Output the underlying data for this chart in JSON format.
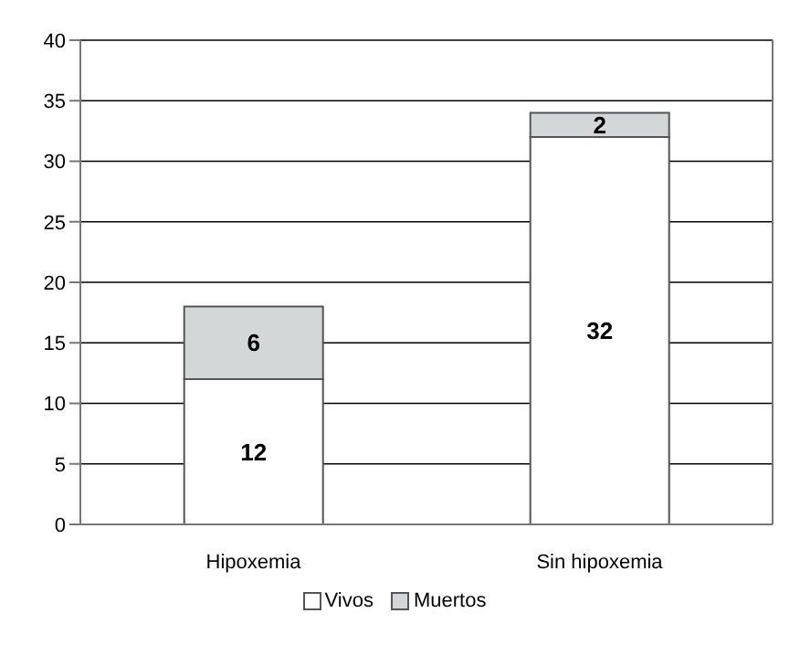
{
  "chart_data": {
    "type": "bar",
    "stacked": true,
    "categories": [
      "Hipoxemia",
      "Sin hipoxemia"
    ],
    "series": [
      {
        "name": "Vivos",
        "color": "#ffffff",
        "values": [
          12,
          32
        ]
      },
      {
        "name": "Muertos",
        "color": "#d3d7d7",
        "values": [
          6,
          2
        ]
      }
    ],
    "ylim": [
      0,
      40
    ],
    "yticks": [
      0,
      5,
      10,
      15,
      20,
      25,
      30,
      35,
      40
    ],
    "grid": "y",
    "legend": "bottom",
    "data_labels": true
  }
}
